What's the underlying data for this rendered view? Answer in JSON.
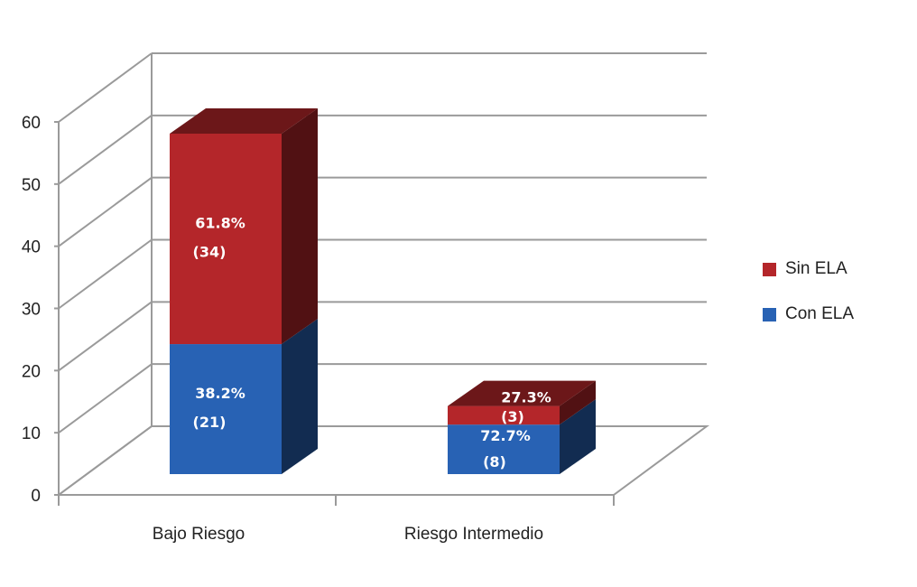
{
  "chart_data": {
    "type": "bar",
    "stacked": true,
    "style": "3d",
    "categories": [
      "Bajo Riesgo",
      "Riesgo Intermedio"
    ],
    "series": [
      {
        "name": "Con ELA",
        "values": [
          21,
          8
        ],
        "labels": [
          "38.2%",
          "72.7%"
        ],
        "counts": [
          "(21)",
          "(8)"
        ],
        "color": "#2862b4"
      },
      {
        "name": "Sin ELA",
        "values": [
          34,
          3
        ],
        "labels": [
          "61.8%",
          "27.3%"
        ],
        "counts": [
          "(34)",
          "(3)"
        ],
        "color": "#b4262a"
      }
    ],
    "ylim": [
      0,
      60
    ],
    "yticks": [
      "0",
      "10",
      "20",
      "30",
      "40",
      "50",
      "60"
    ],
    "grid": true,
    "legend_position": "right"
  }
}
